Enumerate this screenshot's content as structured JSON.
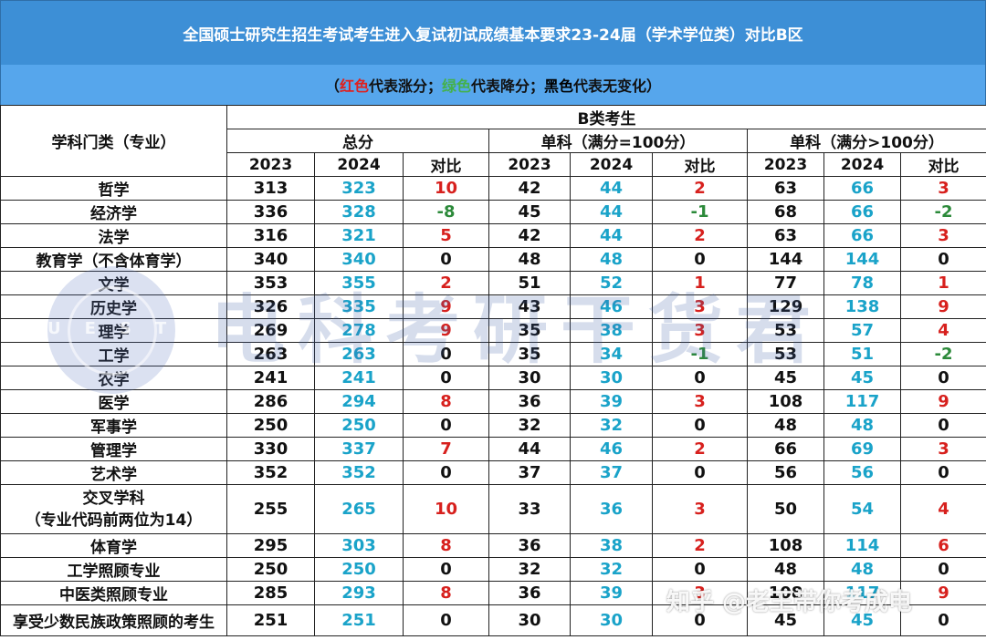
{
  "title": "全国硕士研究生招生考试考生进入复试初试成绩基本要求23-24届（学术学位类）对比B区",
  "legend": {
    "open": "（",
    "red_word": "红色",
    "red_rest": "代表涨分；",
    "green_word": "绿色",
    "green_rest": "代表降分；",
    "black_word": "黑色",
    "black_rest": "代表无变化）"
  },
  "headers": {
    "subject": "学科门类（专业）",
    "group": "B类考生",
    "total": "总分",
    "single100": "单科（满分=100分）",
    "singleOver": "单科（满分>100分）",
    "y2023": "2023",
    "y2024": "2024",
    "diff": "对比"
  },
  "rows": [
    {
      "name": "哲学",
      "t23": "313",
      "t24": "323",
      "td": "10",
      "a23": "42",
      "a24": "44",
      "ad": "2",
      "b23": "63",
      "b24": "66",
      "bd": "3"
    },
    {
      "name": "经济学",
      "t23": "336",
      "t24": "328",
      "td": "-8",
      "a23": "45",
      "a24": "44",
      "ad": "-1",
      "b23": "68",
      "b24": "66",
      "bd": "-2"
    },
    {
      "name": "法学",
      "t23": "316",
      "t24": "321",
      "td": "5",
      "a23": "42",
      "a24": "44",
      "ad": "2",
      "b23": "63",
      "b24": "66",
      "bd": "3"
    },
    {
      "name": "教育学（不含体育学）",
      "t23": "340",
      "t24": "340",
      "td": "0",
      "a23": "48",
      "a24": "48",
      "ad": "0",
      "b23": "144",
      "b24": "144",
      "bd": "0"
    },
    {
      "name": "文学",
      "t23": "353",
      "t24": "355",
      "td": "2",
      "a23": "51",
      "a24": "52",
      "ad": "1",
      "b23": "77",
      "b24": "78",
      "bd": "1"
    },
    {
      "name": "历史学",
      "t23": "326",
      "t24": "335",
      "td": "9",
      "a23": "43",
      "a24": "46",
      "ad": "3",
      "b23": "129",
      "b24": "138",
      "bd": "9"
    },
    {
      "name": "理学",
      "t23": "269",
      "t24": "278",
      "td": "9",
      "a23": "35",
      "a24": "38",
      "ad": "3",
      "b23": "53",
      "b24": "57",
      "bd": "4"
    },
    {
      "name": "工学",
      "t23": "263",
      "t24": "263",
      "td": "0",
      "a23": "35",
      "a24": "34",
      "ad": "-1",
      "b23": "53",
      "b24": "51",
      "bd": "-2"
    },
    {
      "name": "农学",
      "t23": "241",
      "t24": "241",
      "td": "0",
      "a23": "30",
      "a24": "30",
      "ad": "0",
      "b23": "45",
      "b24": "45",
      "bd": "0"
    },
    {
      "name": "医学",
      "t23": "286",
      "t24": "294",
      "td": "8",
      "a23": "36",
      "a24": "39",
      "ad": "3",
      "b23": "108",
      "b24": "117",
      "bd": "9"
    },
    {
      "name": "军事学",
      "t23": "250",
      "t24": "250",
      "td": "0",
      "a23": "32",
      "a24": "32",
      "ad": "0",
      "b23": "48",
      "b24": "48",
      "bd": "0"
    },
    {
      "name": "管理学",
      "t23": "330",
      "t24": "337",
      "td": "7",
      "a23": "44",
      "a24": "46",
      "ad": "2",
      "b23": "66",
      "b24": "69",
      "bd": "3"
    },
    {
      "name": "艺术学",
      "t23": "352",
      "t24": "352",
      "td": "0",
      "a23": "37",
      "a24": "37",
      "ad": "0",
      "b23": "56",
      "b24": "56",
      "bd": "0"
    },
    {
      "name": "交叉学科",
      "name2": "（专业代码前两位为14）",
      "t23": "255",
      "t24": "265",
      "td": "10",
      "a23": "33",
      "a24": "36",
      "ad": "3",
      "b23": "50",
      "b24": "54",
      "bd": "4"
    },
    {
      "name": "体育学",
      "t23": "295",
      "t24": "303",
      "td": "8",
      "a23": "36",
      "a24": "38",
      "ad": "2",
      "b23": "108",
      "b24": "114",
      "bd": "6"
    },
    {
      "name": "工学照顾专业",
      "t23": "250",
      "t24": "250",
      "td": "0",
      "a23": "32",
      "a24": "32",
      "ad": "0",
      "b23": "48",
      "b24": "48",
      "bd": "0"
    },
    {
      "name": "中医类照顾专业",
      "t23": "285",
      "t24": "293",
      "td": "8",
      "a23": "36",
      "a24": "39",
      "ad": "3",
      "b23": "108",
      "b24": "117",
      "bd": "9"
    },
    {
      "name": "享受少数民族政策照顾的考生",
      "t23": "251",
      "t24": "251",
      "td": "0",
      "a23": "30",
      "a24": "30",
      "ad": "0",
      "b23": "45",
      "b24": "45",
      "bd": "0"
    }
  ],
  "colors": {
    "positive": "#d7201d",
    "negative": "#2c8a3a",
    "value2024": "#1aa3c9",
    "banner": "#3d8fd6"
  },
  "watermark": "电科考研干货君",
  "seal": "UESTC",
  "credit": "知乎 @老王带你考成电"
}
